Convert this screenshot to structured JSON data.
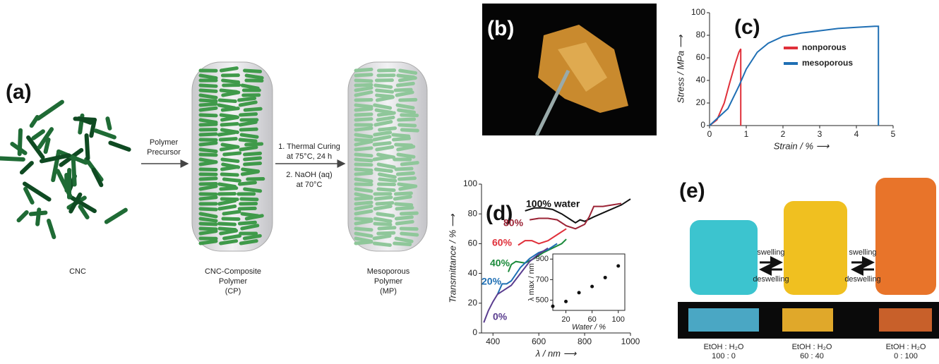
{
  "chart_data": [
    {
      "type": "line",
      "label": "(c)",
      "xlabel": "Strain / % ⟶",
      "ylabel": "Stress / MPa ⟶",
      "xlim": [
        0,
        5
      ],
      "ylim": [
        0,
        100
      ],
      "xticks": [
        0,
        1,
        2,
        3,
        4,
        5
      ],
      "yticks": [
        0,
        20,
        40,
        60,
        80,
        100
      ],
      "legend": "center right",
      "series": [
        {
          "name": "nonporous",
          "color": "#e0303a",
          "x": [
            0,
            0.2,
            0.4,
            0.55,
            0.7,
            0.8,
            0.85,
            0.85
          ],
          "values": [
            0,
            5,
            20,
            38,
            55,
            65,
            68,
            0
          ]
        },
        {
          "name": "mesoporous",
          "color": "#1f6fb4",
          "x": [
            0,
            0.5,
            0.8,
            1.0,
            1.3,
            1.6,
            2,
            2.5,
            3,
            3.5,
            4,
            4.5,
            4.6,
            4.6
          ],
          "values": [
            0,
            15,
            35,
            50,
            65,
            73,
            79,
            82,
            84,
            86,
            87,
            88,
            88,
            0
          ]
        }
      ]
    },
    {
      "type": "line",
      "label": "(d)",
      "xlabel": "λ / nm ⟶",
      "ylabel": "Transmittance / % ⟶",
      "xlim": [
        350,
        1000
      ],
      "ylim": [
        0,
        100
      ],
      "xticks": [
        400,
        600,
        800,
        1000
      ],
      "yticks": [
        0,
        20,
        40,
        60,
        80,
        100
      ],
      "series": [
        {
          "name": "100% water",
          "color": "#111111",
          "x": [
            540,
            580,
            620,
            660,
            700,
            740,
            760,
            780,
            800,
            840,
            900,
            960,
            1000
          ],
          "values": [
            82,
            84,
            84,
            83,
            80,
            76,
            74,
            76,
            75,
            78,
            82,
            86,
            90
          ]
        },
        {
          "name": "80%",
          "color": "#9b2335",
          "x": [
            560,
            600,
            640,
            680,
            720,
            760,
            800,
            820,
            840,
            880,
            920,
            960
          ],
          "values": [
            76,
            77,
            77,
            76,
            72,
            70,
            73,
            78,
            85,
            85,
            86,
            87
          ]
        },
        {
          "name": "60%",
          "color": "#e0303a",
          "x": [
            510,
            540,
            570,
            600,
            640,
            680,
            720
          ],
          "values": [
            59,
            62,
            62,
            60,
            62,
            66,
            70
          ]
        },
        {
          "name": "40%",
          "color": "#1a8a3a",
          "x": [
            467,
            480,
            500,
            540,
            580,
            620,
            660,
            700,
            720
          ],
          "values": [
            41,
            46,
            48,
            47,
            50,
            54,
            57,
            60,
            63
          ]
        },
        {
          "name": "20%",
          "color": "#1f6fb4",
          "x": [
            420,
            440,
            460,
            480,
            520,
            560,
            600,
            640,
            680
          ],
          "values": [
            26,
            33,
            33,
            35,
            44,
            50,
            54,
            56,
            60
          ]
        },
        {
          "name": "0%",
          "color": "#5a3d8f",
          "x": [
            360,
            380,
            400,
            420,
            440,
            480,
            520,
            560,
            600,
            640
          ],
          "values": [
            7,
            15,
            21,
            26,
            28,
            32,
            40,
            48,
            53,
            57
          ]
        }
      ]
    },
    {
      "type": "scatter",
      "xlabel": "Water / %",
      "ylabel": "λ max / nm",
      "xlim": [
        0,
        110
      ],
      "ylim": [
        400,
        950
      ],
      "xticks": [
        20,
        60,
        100
      ],
      "yticks": [
        500,
        700,
        900
      ],
      "color": "#111111",
      "x": [
        0,
        20,
        40,
        60,
        80,
        100
      ],
      "values": [
        440,
        487,
        573,
        633,
        720,
        833
      ]
    }
  ],
  "panel_a": {
    "label": "(a)",
    "arrow_1": [
      "Polymer",
      "Precursor"
    ],
    "arrow_2": [
      "1. Thermal Curing",
      "at 75°C, 24 h",
      "2. NaOH (aq)",
      "at 70°C"
    ],
    "captions": [
      [
        "CNC"
      ],
      [
        "CNC-Composite",
        "Polymer",
        "(CP)"
      ],
      [
        "Mesoporous",
        "Polymer",
        "(MP)"
      ]
    ]
  },
  "panel_b": {
    "label": "(b)"
  },
  "panel_e": {
    "label": "(e)",
    "arrows": [
      {
        "forward": "swelling",
        "backward": "deswelling"
      },
      {
        "forward": "swelling",
        "backward": "deswelling"
      }
    ],
    "captions": [
      [
        "EtOH : H₂O",
        "100 : 0"
      ],
      [
        "EtOH : H₂O",
        "60 : 40"
      ],
      [
        "EtOH : H₂O",
        "0 : 100"
      ]
    ]
  }
}
